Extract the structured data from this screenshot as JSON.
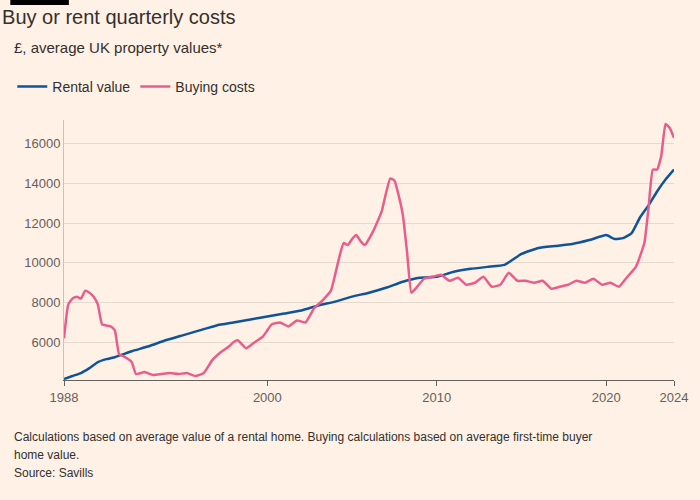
{
  "chart_data": {
    "type": "line",
    "title": "Buy or rent quarterly costs",
    "subtitle": "£, average UK property values*",
    "notes": [
      "Calculations based on average value of a rental home. Buying calculations based on average first-time buyer",
      "home value."
    ],
    "source": "Source: Savills",
    "xlim": [
      1988,
      2024
    ],
    "xticks": [
      1988,
      2000,
      2010,
      2020,
      2024
    ],
    "ylim": [
      4100,
      17200
    ],
    "yticks": [
      6000,
      8000,
      10000,
      12000,
      14000,
      16000
    ],
    "grid": true,
    "legend": "top-left",
    "series": [
      {
        "name": "Rental value",
        "color": "#0f5499",
        "x": [
          1988.0,
          1988.5,
          1989.0,
          1989.5,
          1990.0,
          1990.5,
          1991.0,
          1991.5,
          1992.0,
          1993.0,
          1994.0,
          1995.0,
          1996.0,
          1997.0,
          1998.0,
          1999.0,
          2000.0,
          2001.0,
          2002.0,
          2003.0,
          2004.0,
          2005.0,
          2006.0,
          2007.0,
          2008.0,
          2009.0,
          2010.0,
          2011.0,
          2012.0,
          2013.0,
          2014.0,
          2015.0,
          2016.0,
          2017.0,
          2018.0,
          2019.0,
          2020.0,
          2020.5,
          2021.0,
          2021.5,
          2022.0,
          2022.5,
          2023.0,
          2023.5,
          2024.0
        ],
        "values": [
          4150,
          4300,
          4450,
          4700,
          5000,
          5150,
          5250,
          5400,
          5550,
          5800,
          6100,
          6350,
          6600,
          6850,
          7000,
          7150,
          7300,
          7450,
          7600,
          7850,
          8050,
          8300,
          8500,
          8750,
          9050,
          9250,
          9300,
          9550,
          9700,
          9800,
          9900,
          10450,
          10750,
          10850,
          10950,
          11150,
          11400,
          11200,
          11250,
          11500,
          12300,
          12900,
          13600,
          14200,
          14700
        ]
      },
      {
        "name": "Buying costs",
        "color": "#e95d8c",
        "x": [
          1988.0,
          1988.25,
          1988.5,
          1988.75,
          1989.0,
          1989.25,
          1989.5,
          1989.75,
          1990.0,
          1990.25,
          1990.75,
          1991.0,
          1991.25,
          1991.5,
          1992.0,
          1992.25,
          1992.75,
          1993.25,
          1993.75,
          1994.25,
          1994.75,
          1995.25,
          1995.75,
          1996.25,
          1996.75,
          1997.25,
          1997.75,
          1998.0,
          1998.25,
          1998.75,
          1999.25,
          1999.75,
          2000.25,
          2000.75,
          2001.25,
          2001.75,
          2002.25,
          2002.75,
          2003.25,
          2003.75,
          2004.0,
          2004.25,
          2004.5,
          2004.75,
          2005.0,
          2005.25,
          2005.5,
          2005.75,
          2006.25,
          2006.75,
          2007.0,
          2007.25,
          2007.5,
          2007.75,
          2008.0,
          2008.25,
          2008.5,
          2008.75,
          2009.25,
          2009.75,
          2010.25,
          2010.75,
          2011.25,
          2011.75,
          2012.25,
          2012.75,
          2013.25,
          2013.75,
          2014.25,
          2014.75,
          2015.25,
          2015.75,
          2016.25,
          2016.75,
          2017.25,
          2017.75,
          2018.25,
          2018.75,
          2019.25,
          2019.75,
          2020.25,
          2020.75,
          2021.25,
          2021.75,
          2022.25,
          2022.5,
          2022.75,
          2023.0,
          2023.25,
          2023.5,
          2023.75,
          2024.0
        ],
        "values": [
          6200,
          7900,
          8200,
          8300,
          8200,
          8600,
          8500,
          8300,
          7900,
          6900,
          6800,
          6600,
          5400,
          5300,
          5000,
          4400,
          4500,
          4350,
          4400,
          4450,
          4400,
          4450,
          4300,
          4450,
          5100,
          5500,
          5800,
          6000,
          6100,
          5700,
          6000,
          6300,
          6900,
          7000,
          6800,
          7100,
          7000,
          7700,
          8100,
          8600,
          9400,
          10300,
          11000,
          10900,
          11200,
          11400,
          11100,
          10900,
          11600,
          12600,
          13500,
          14250,
          14150,
          13400,
          12400,
          10500,
          8500,
          8700,
          9200,
          9300,
          9400,
          9100,
          9250,
          8900,
          9000,
          9300,
          8800,
          8900,
          9500,
          9100,
          9100,
          9000,
          9100,
          8700,
          8800,
          8900,
          9100,
          9000,
          9200,
          8900,
          9000,
          8800,
          9300,
          9800,
          11000,
          12800,
          14700,
          14700,
          15400,
          17000,
          16800,
          16300
        ]
      }
    ]
  }
}
